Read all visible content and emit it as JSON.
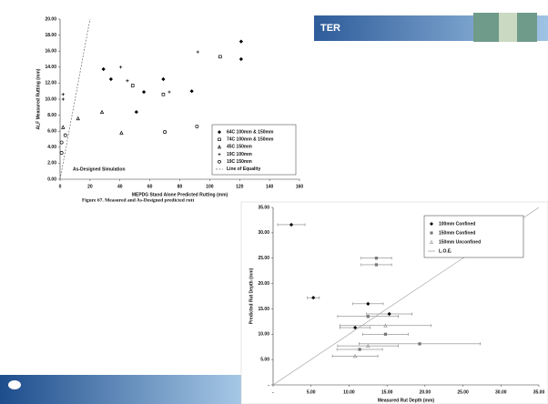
{
  "header": {
    "title": "TER"
  },
  "caption": "Figure 67. Measured and As-Designed predicted rutt",
  "chart_data": [
    {
      "type": "scatter",
      "x_label": "MEPDG Stand Alone Predicted Rutting (mm)",
      "y_label": "ALF Measured Rutting (mm)",
      "annotation": "As-Designed Simulation",
      "xlim": [
        0,
        160
      ],
      "xticks": [
        0,
        20,
        40,
        60,
        80,
        100,
        120,
        140,
        160
      ],
      "ylim": [
        0,
        20
      ],
      "yticks": [
        {
          "value": 0,
          "label": "0.00"
        },
        {
          "value": 2,
          "label": "2.00"
        },
        {
          "value": 4,
          "label": "4.00"
        },
        {
          "value": 6,
          "label": "6.00"
        },
        {
          "value": 8,
          "label": "8.00"
        },
        {
          "value": 10,
          "label": "10.00"
        },
        {
          "value": 12,
          "label": "12.00"
        },
        {
          "value": 14,
          "label": "14.00"
        },
        {
          "value": 16,
          "label": "16.00"
        },
        {
          "value": 18,
          "label": "18.00"
        },
        {
          "value": 20,
          "label": "20.00"
        }
      ],
      "legend": "lower right",
      "grid": false,
      "series": [
        {
          "name": "64C 100mm & 150mm",
          "color": "#000000",
          "marker": "filled-diamond",
          "x": [
            29,
            34,
            51,
            56,
            69,
            121,
            121,
            88
          ],
          "values": [
            13.75,
            12.5,
            8.4,
            10.9,
            12.5,
            15.0,
            17.2,
            11.0
          ]
        },
        {
          "name": "74C 100mm & 150mm",
          "color": "#000000",
          "marker": "open-square",
          "x": [
            48.5,
            69,
            107
          ],
          "values": [
            11.7,
            10.6,
            15.3
          ]
        },
        {
          "name": "45C 150mm",
          "color": "#000000",
          "marker": "open-triangle",
          "x": [
            12,
            28,
            41,
            2
          ],
          "values": [
            7.6,
            8.4,
            5.8,
            6.5
          ]
        },
        {
          "name": "19C 100mm",
          "color": "#000000",
          "marker": "plus",
          "x": [
            40.5,
            45,
            73,
            92,
            2,
            2
          ],
          "values": [
            14.0,
            12.3,
            10.9,
            15.9,
            10.6,
            10.0
          ]
        },
        {
          "name": "19C 150mm",
          "color": "#000000",
          "marker": "open-circle",
          "x": [
            70,
            91.5,
            3.5,
            1,
            1
          ],
          "values": [
            5.9,
            6.6,
            5.5,
            4.6,
            3.3
          ]
        },
        {
          "name": "Line of Equality",
          "color": "#555555",
          "marker": "dashed-line",
          "x": [
            0,
            20
          ],
          "values": [
            0,
            20
          ]
        }
      ]
    },
    {
      "type": "scatter",
      "x_label": "Measured Rut Depth (mm)",
      "y_label": "Predicted Rut Depth (mm)",
      "xlim": [
        0,
        35
      ],
      "xticks": [
        {
          "value": 0,
          "label": "-"
        },
        {
          "value": 5,
          "label": "5.00"
        },
        {
          "value": 10,
          "label": "10.00"
        },
        {
          "value": 15,
          "label": "15.00"
        },
        {
          "value": 20,
          "label": "20.00"
        },
        {
          "value": 25,
          "label": "25.00"
        },
        {
          "value": 30,
          "label": "30.00"
        },
        {
          "value": 35,
          "label": "35.00"
        }
      ],
      "ylim": [
        0,
        35
      ],
      "yticks": [
        {
          "value": 0,
          "label": "-"
        },
        {
          "value": 5,
          "label": "5.00"
        },
        {
          "value": 10,
          "label": "10.00"
        },
        {
          "value": 15,
          "label": "15.00"
        },
        {
          "value": 20,
          "label": "20.00"
        },
        {
          "value": 25,
          "label": "25.00"
        },
        {
          "value": 30,
          "label": "30.00"
        },
        {
          "value": 35,
          "label": "35.00"
        }
      ],
      "legend": "upper right",
      "grid": false,
      "series": [
        {
          "name": "100mm Confined",
          "color": "#000000",
          "marker": "filled-diamond",
          "x": [
            2.4,
            5.3,
            12.5,
            15.3,
            10.8
          ],
          "values": [
            31.6,
            17.2,
            16,
            14,
            11.3
          ],
          "xerr": [
            1.8,
            0.8,
            2,
            3,
            2
          ]
        },
        {
          "name": "150mm Confined",
          "color": "#777777",
          "marker": "filled-square",
          "x": [
            13.6,
            13.6,
            12.5,
            14.8,
            19.3,
            11.4
          ],
          "values": [
            25,
            23.7,
            13.5,
            10,
            8.1,
            7
          ],
          "xerr": [
            2,
            2,
            4,
            3,
            8,
            3
          ]
        },
        {
          "name": "150mm Unconfined",
          "color": "#999999",
          "marker": "open-triangle",
          "x": [
            14.8,
            12.5,
            10.8
          ],
          "values": [
            11.7,
            7.7,
            5.7
          ],
          "xerr": [
            6,
            4,
            3
          ]
        },
        {
          "name": "L.O.E.",
          "color": "#999999",
          "marker": "solid-line",
          "x": [
            0,
            35
          ],
          "values": [
            0,
            35
          ]
        }
      ]
    }
  ]
}
